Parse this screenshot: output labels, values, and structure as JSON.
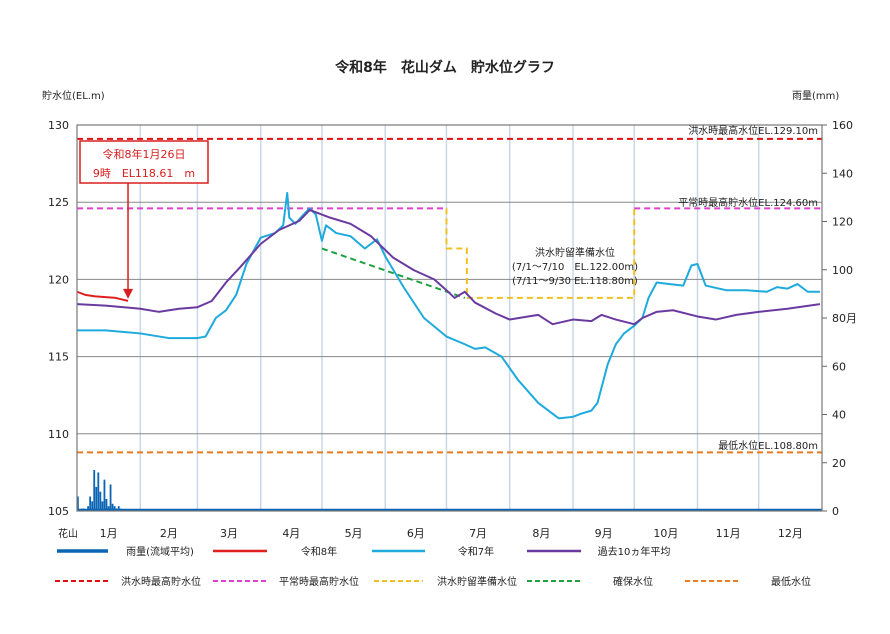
{
  "chart_data": {
    "type": "line",
    "title": "令和8年　花山ダム　貯水位グラフ",
    "ylabel_left": "貯水位(EL.m)",
    "ylabel_right": "雨量(mm)",
    "station_label": "花山",
    "x_ticks": [
      "1月",
      "2月",
      "3月",
      "4月",
      "5月",
      "6月",
      "7月",
      "8月",
      "9月",
      "10月",
      "11月",
      "12月"
    ],
    "ylim_left": [
      105,
      130
    ],
    "yticks_left": [
      "105",
      "110",
      "115",
      "120",
      "125",
      "130"
    ],
    "ylim_right": [
      0,
      160
    ],
    "yticks_right": [
      "0",
      "20",
      "40",
      "60",
      "80月",
      "100",
      "120",
      "140",
      "160"
    ],
    "grid": true,
    "legend_placement": "bottom",
    "annotation": {
      "line1": "令和8年1月26日",
      "line2": "9時　EL118.61　m",
      "date": "01-26",
      "value": 118.61
    },
    "reference_labels": {
      "flood_max": "洪水時最高水位EL.129.10m",
      "normal_max": "平常時最高貯水位EL.124.60m",
      "min_level": "最低水位EL.108.80m",
      "reserve_title": "洪水貯留準備水位",
      "reserve_1": "(7/1～7/10　EL.122.00m)",
      "reserve_2": "(7/11～9/30 EL.118.80m)"
    },
    "reference_levels": {
      "flood_max": 129.1,
      "normal_max": 124.6,
      "min_level": 108.8,
      "reserve_1": {
        "from": "07-01",
        "to": "07-10",
        "value": 122.0
      },
      "reserve_2": {
        "from": "07-11",
        "to": "09-30",
        "value": 118.8
      },
      "secure": {
        "from": "05-01",
        "to": "07-10",
        "values": [
          122.0,
          118.8
        ]
      }
    },
    "colors": {
      "rain": "#0a64b4",
      "r8": "#e02020",
      "r7": "#1eaadc",
      "avg": "#6a3aa0",
      "flood_max": "#e01010",
      "normal_max": "#e040d0",
      "reserve": "#f0c020",
      "secure": "#20a040",
      "min_level": "#e87a20",
      "grid_h": "#888888",
      "grid_v": "#c8d8e8"
    },
    "series": [
      {
        "name": "令和8年",
        "key": "r8",
        "points": [
          [
            "01-01",
            119.2
          ],
          [
            "01-05",
            119.0
          ],
          [
            "01-10",
            118.9
          ],
          [
            "01-15",
            118.85
          ],
          [
            "01-20",
            118.8
          ],
          [
            "01-26",
            118.61
          ]
        ]
      },
      {
        "name": "令和7年",
        "key": "r7",
        "points": [
          [
            "01-01",
            116.7
          ],
          [
            "01-15",
            116.7
          ],
          [
            "02-01",
            116.5
          ],
          [
            "02-15",
            116.2
          ],
          [
            "03-01",
            116.2
          ],
          [
            "03-05",
            116.3
          ],
          [
            "03-10",
            117.5
          ],
          [
            "03-15",
            118.0
          ],
          [
            "03-20",
            119.0
          ],
          [
            "03-25",
            121.0
          ],
          [
            "04-01",
            122.7
          ],
          [
            "04-08",
            123.0
          ],
          [
            "04-12",
            123.5
          ],
          [
            "04-14",
            125.6
          ],
          [
            "04-15",
            124.0
          ],
          [
            "04-18",
            123.6
          ],
          [
            "04-22",
            124.2
          ],
          [
            "04-25",
            124.6
          ],
          [
            "04-28",
            124.2
          ],
          [
            "05-01",
            122.5
          ],
          [
            "05-03",
            123.5
          ],
          [
            "05-08",
            123.0
          ],
          [
            "05-15",
            122.8
          ],
          [
            "05-22",
            122.0
          ],
          [
            "05-28",
            122.6
          ],
          [
            "06-01",
            121.5
          ],
          [
            "06-10",
            119.5
          ],
          [
            "06-20",
            117.5
          ],
          [
            "07-01",
            116.3
          ],
          [
            "07-10",
            115.8
          ],
          [
            "07-15",
            115.5
          ],
          [
            "07-20",
            115.6
          ],
          [
            "07-28",
            115.0
          ],
          [
            "08-05",
            113.5
          ],
          [
            "08-15",
            112.0
          ],
          [
            "08-25",
            111.0
          ],
          [
            "09-01",
            111.1
          ],
          [
            "09-05",
            111.3
          ],
          [
            "09-10",
            111.5
          ],
          [
            "09-13",
            112.0
          ],
          [
            "09-18",
            114.5
          ],
          [
            "09-22",
            115.8
          ],
          [
            "09-26",
            116.5
          ],
          [
            "10-01",
            117.0
          ],
          [
            "10-05",
            117.5
          ],
          [
            "10-08",
            118.8
          ],
          [
            "10-12",
            119.8
          ],
          [
            "10-18",
            119.7
          ],
          [
            "10-25",
            119.6
          ],
          [
            "10-29",
            120.9
          ],
          [
            "11-01",
            121.0
          ],
          [
            "11-05",
            119.6
          ],
          [
            "11-15",
            119.3
          ],
          [
            "11-25",
            119.3
          ],
          [
            "12-05",
            119.2
          ],
          [
            "12-10",
            119.5
          ],
          [
            "12-15",
            119.4
          ],
          [
            "12-20",
            119.7
          ],
          [
            "12-25",
            119.2
          ],
          [
            "12-31",
            119.2
          ]
        ]
      },
      {
        "name": "過去10ヵ年平均",
        "key": "avg",
        "points": [
          [
            "01-01",
            118.4
          ],
          [
            "01-15",
            118.3
          ],
          [
            "02-01",
            118.1
          ],
          [
            "02-10",
            117.9
          ],
          [
            "02-20",
            118.1
          ],
          [
            "03-01",
            118.2
          ],
          [
            "03-08",
            118.6
          ],
          [
            "03-15",
            119.8
          ],
          [
            "03-22",
            120.8
          ],
          [
            "04-01",
            122.3
          ],
          [
            "04-10",
            123.2
          ],
          [
            "04-20",
            123.8
          ],
          [
            "04-25",
            124.5
          ],
          [
            "05-05",
            124.0
          ],
          [
            "05-15",
            123.6
          ],
          [
            "05-25",
            122.8
          ],
          [
            "06-05",
            121.4
          ],
          [
            "06-15",
            120.6
          ],
          [
            "06-25",
            120.0
          ],
          [
            "07-01",
            119.3
          ],
          [
            "07-05",
            118.8
          ],
          [
            "07-10",
            119.2
          ],
          [
            "07-15",
            118.5
          ],
          [
            "07-25",
            117.8
          ],
          [
            "08-01",
            117.4
          ],
          [
            "08-10",
            117.6
          ],
          [
            "08-15",
            117.7
          ],
          [
            "08-22",
            117.1
          ],
          [
            "09-01",
            117.4
          ],
          [
            "09-10",
            117.3
          ],
          [
            "09-15",
            117.7
          ],
          [
            "09-22",
            117.4
          ],
          [
            "10-01",
            117.1
          ],
          [
            "10-05",
            117.5
          ],
          [
            "10-12",
            117.9
          ],
          [
            "10-20",
            118.0
          ],
          [
            "11-01",
            117.6
          ],
          [
            "11-10",
            117.4
          ],
          [
            "11-20",
            117.7
          ],
          [
            "12-01",
            117.9
          ],
          [
            "12-15",
            118.1
          ],
          [
            "12-31",
            118.4
          ]
        ]
      }
    ],
    "rain": {
      "name": "雨量(流域平均)",
      "start": "01-01",
      "values": [
        6,
        0,
        1,
        1,
        0,
        2,
        6,
        4,
        17,
        10,
        16,
        8,
        4,
        13,
        5,
        2,
        11,
        3,
        2,
        1,
        2,
        1,
        0,
        0,
        0
      ]
    },
    "legend": [
      {
        "label": "雨量(流域平均)",
        "key": "rain",
        "style": "solid"
      },
      {
        "label": "令和8年",
        "key": "r8",
        "style": "solid"
      },
      {
        "label": "令和7年",
        "key": "r7",
        "style": "solid"
      },
      {
        "label": "過去10ヵ年平均",
        "key": "avg",
        "style": "solid"
      },
      {
        "label": "洪水時最高貯水位",
        "key": "flood_max",
        "style": "dashed"
      },
      {
        "label": "平常時最高貯水位",
        "key": "normal_max",
        "style": "dashed"
      },
      {
        "label": "洪水貯留準備水位",
        "key": "reserve",
        "style": "dashed"
      },
      {
        "label": "確保水位",
        "key": "secure",
        "style": "dashed"
      },
      {
        "label": "最低水位",
        "key": "min_level",
        "style": "dashed"
      }
    ]
  }
}
